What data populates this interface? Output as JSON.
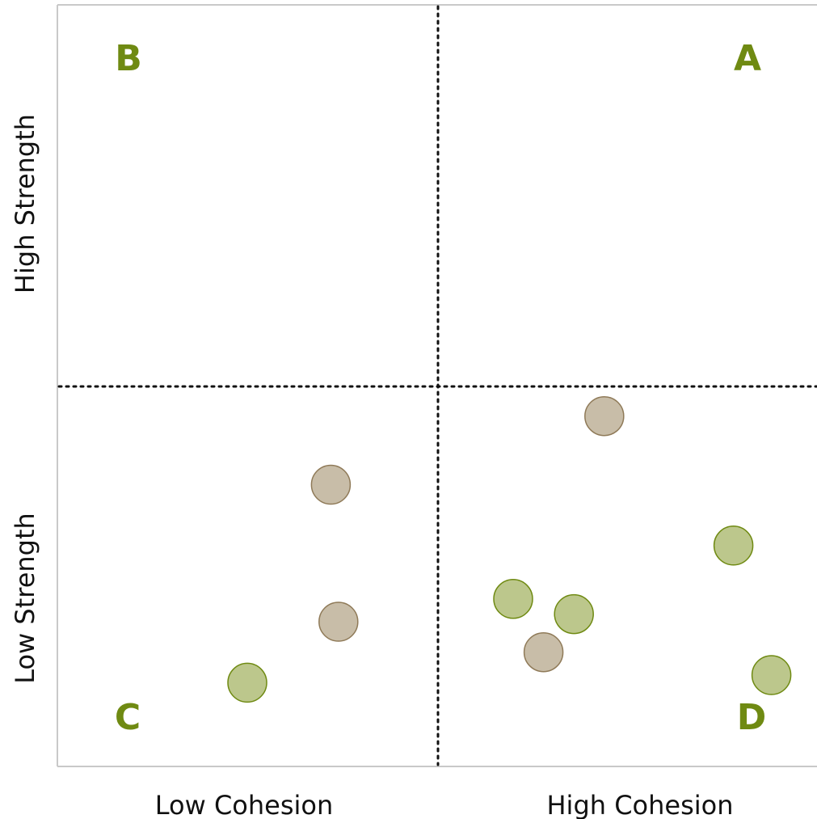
{
  "colors": {
    "quadrant_letter": "#6f8a12",
    "green_fill": "#bcc78c",
    "green_stroke": "#6f8a12",
    "tan_fill": "#c8bda8",
    "tan_stroke": "#8f7a58",
    "axis": "#c9c9c9",
    "divider": "#111111"
  },
  "chart_data": {
    "type": "scatter",
    "title": "",
    "xlabel": "",
    "ylabel": "",
    "xlim": [
      0,
      10
    ],
    "ylim": [
      0,
      10
    ],
    "grid": false,
    "x_tick_labels": [
      "Low Cohesion",
      "High Cohesion"
    ],
    "y_tick_labels": [
      "Low Strength",
      "High Strength"
    ],
    "quadrants": [
      {
        "id": "A",
        "label": "A",
        "position": "top-right"
      },
      {
        "id": "B",
        "label": "B",
        "position": "top-left"
      },
      {
        "id": "C",
        "label": "C",
        "position": "bottom-left"
      },
      {
        "id": "D",
        "label": "D",
        "position": "bottom-right"
      }
    ],
    "dividers": {
      "x": 5,
      "y": 5
    },
    "series": [
      {
        "color": "#c8bda8",
        "points": [
          {
            "x": 7.2,
            "y": 4.6
          },
          {
            "x": 3.6,
            "y": 3.7
          },
          {
            "x": 3.7,
            "y": 1.9
          },
          {
            "x": 6.4,
            "y": 1.5
          }
        ]
      },
      {
        "color": "#bcc78c",
        "points": [
          {
            "x": 8.9,
            "y": 2.9
          },
          {
            "x": 6.0,
            "y": 2.2
          },
          {
            "x": 6.8,
            "y": 2.0
          },
          {
            "x": 2.5,
            "y": 1.1
          },
          {
            "x": 9.4,
            "y": 1.2
          }
        ]
      }
    ]
  }
}
